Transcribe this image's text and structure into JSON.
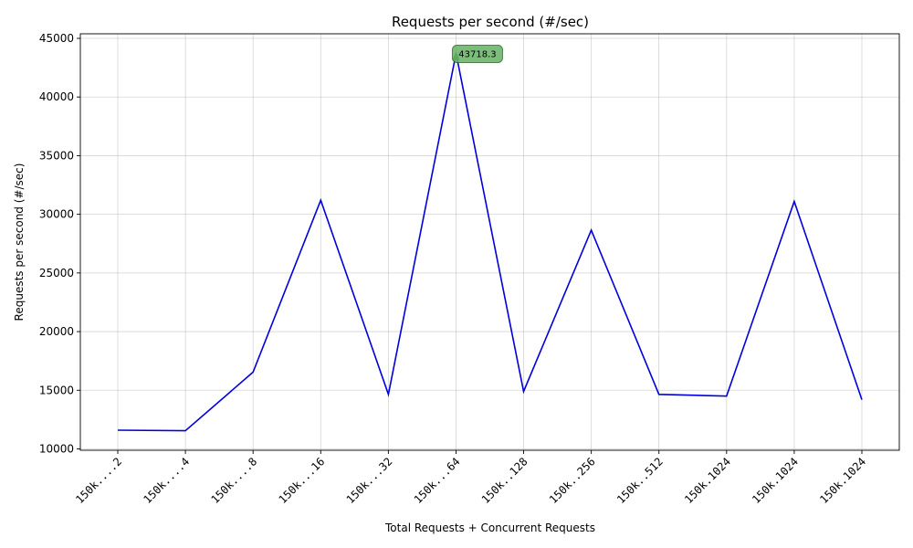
{
  "chart_data": {
    "type": "line",
    "title": "Requests per second (#/sec)",
    "xlabel": "Total Requests + Concurrent Requests",
    "ylabel": "Requests per second (#/sec)",
    "categories": [
      "150k....2",
      "150k....4",
      "150k....8",
      "150k...16",
      "150k...32",
      "150k...64",
      "150k..128",
      "150k..256",
      "150k..512",
      "150k.1024",
      "150k.1024",
      "150k.1024"
    ],
    "series": [
      {
        "values": [
          11600,
          11550,
          16550,
          31200,
          14650,
          43718.3,
          14900,
          28650,
          14650,
          14500,
          31100,
          14200
        ],
        "color": "#0000dd"
      }
    ],
    "ylim": [
      10000,
      45000
    ],
    "yticks": [
      10000,
      15000,
      20000,
      25000,
      30000,
      35000,
      40000,
      45000
    ],
    "grid": true,
    "annotation": {
      "text": "43718.3",
      "index": 5,
      "color": "#66b266"
    }
  }
}
